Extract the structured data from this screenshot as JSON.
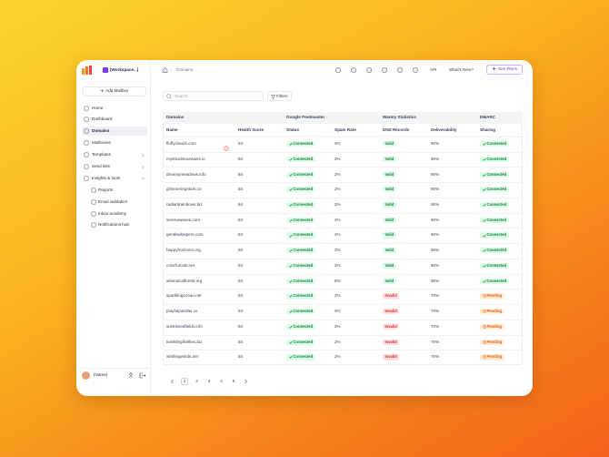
{
  "sidebar": {
    "workspace": "[Workspace...]",
    "add_button": "Add Mailbox",
    "nav": [
      "Home",
      "Dashboard",
      "Domains",
      "Mailboxes",
      "Templates",
      "Seed lists",
      "Insights & tools"
    ],
    "subnav": [
      "Reports",
      "Email validation",
      "Inbox academy",
      "Notifications hub"
    ],
    "selected": "Domains",
    "user": "{Name}"
  },
  "topbar": {
    "breadcrumb": "Domains",
    "links": [
      "API",
      "What's New?"
    ],
    "cta": "See Plans"
  },
  "toolbar": {
    "search_placeholder": "Search",
    "filters": "Filters"
  },
  "table": {
    "groups": [
      "Domains",
      "Google Postmaster",
      "Warmy Statistics",
      "DMARC"
    ],
    "columns": [
      "Name",
      "Health Score",
      "Status",
      "Spam Rate",
      "DNS Records",
      "Deliverability",
      "Sharing"
    ],
    "rows": [
      [
        "fluffyclouds.com",
        "84",
        "Connected",
        "2%",
        "Valid",
        "90%",
        "Connected"
      ],
      [
        "mysticalmountains.io",
        "84",
        "Connected",
        "2%",
        "Valid",
        "90%",
        "Connected"
      ],
      [
        "dreamymeadows.info",
        "84",
        "Connected",
        "2%",
        "Valid",
        "90%",
        "Connected"
      ],
      [
        "glimmeringstars.co",
        "84",
        "Connected",
        "2%",
        "Valid",
        "90%",
        "Connected"
      ],
      [
        "radiantrainbows.biz",
        "84",
        "Connected",
        "2%",
        "Valid",
        "90%",
        "Connected"
      ],
      [
        "serenewaves.com",
        "84",
        "Connected",
        "2%",
        "Valid",
        "90%",
        "Connected"
      ],
      [
        "gentlewhispers.com",
        "84",
        "Connected",
        "2%",
        "Valid",
        "90%",
        "Connected"
      ],
      [
        "happyhorizons.org",
        "84",
        "Connected",
        "2%",
        "Valid",
        "90%",
        "Connected"
      ],
      [
        "colorfulcats.net",
        "84",
        "Connected",
        "2%",
        "Valid",
        "90%",
        "Connected"
      ],
      [
        "whimsicalforest.org",
        "84",
        "Connected",
        "5%",
        "Valid",
        "90%",
        "Connected"
      ],
      [
        "sparklingocean.net",
        "84",
        "Connected",
        "2%",
        "Invalid",
        "70%",
        "Pending"
      ],
      [
        "playfulpandas.co",
        "84",
        "Connected",
        "2%",
        "Invalid",
        "70%",
        "Pending"
      ],
      [
        "sunkissedfields.info",
        "84",
        "Connected",
        "2%",
        "Invalid",
        "70%",
        "Pending"
      ],
      [
        "twinklingfireflies.biz",
        "84",
        "Connected",
        "2%",
        "Invalid",
        "70%",
        "Pending"
      ],
      [
        "whirlingwinds.net",
        "84",
        "Connected",
        "2%",
        "Invalid",
        "70%",
        "Pending"
      ]
    ],
    "badge_styles": {
      "Connected": {
        "bg": "#dcfce7",
        "fg": "#15803d",
        "icon": "check"
      },
      "Valid": {
        "bg": "#dcfce7",
        "fg": "#15803d",
        "icon": null
      },
      "Invalid": {
        "bg": "#fee2e2",
        "fg": "#dc2626",
        "icon": null
      },
      "Pending": {
        "bg": "#ffedd5",
        "fg": "#ea580c",
        "icon": "clock"
      }
    },
    "badge_columns": [
      2,
      4,
      6
    ]
  },
  "pagination": {
    "pages": [
      "1",
      "2",
      "3",
      "4",
      "5"
    ],
    "current": "1"
  }
}
